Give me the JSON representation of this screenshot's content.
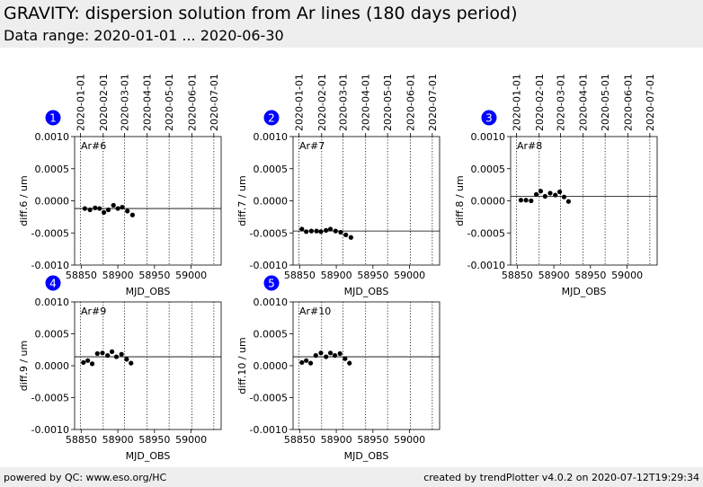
{
  "header": {
    "title": "GRAVITY: dispersion solution from Ar lines (180 days period)",
    "subtitle": "Data range: 2020-01-01 ... 2020-06-30"
  },
  "footer": {
    "left": "powered by QC: www.eso.org/HC",
    "right": "created by trendPlotter v4.0.2 on 2020-07-12T19:29:34"
  },
  "colors": {
    "badge": "#0000ff",
    "points": "#000000",
    "background": "#eeeeee"
  },
  "chart_data": [
    {
      "type": "scatter",
      "panel": "1",
      "label": "Ar#6",
      "xlabel": "MJD_OBS",
      "ylabel": "diff.6 / um",
      "xlim": [
        58841,
        59041
      ],
      "ylim": [
        -0.001,
        0.001
      ],
      "xticks": [
        58850,
        58900,
        58950,
        59000
      ],
      "xtick_labels": [
        "58850",
        "58900",
        "58950",
        "59000"
      ],
      "yticks": [
        -0.001,
        -0.0005,
        0,
        0.0005,
        0.001
      ],
      "ytick_labels": [
        "-0.0010",
        "-0.0005",
        "0.0000",
        "0.0005",
        "0.0010"
      ],
      "top_ticks": [
        58849,
        58880,
        58909,
        58940,
        58970,
        59001,
        59031
      ],
      "top_tick_labels": [
        "2020-01-01",
        "2020-02-01",
        "2020-03-01",
        "2020-04-01",
        "2020-05-01",
        "2020-06-01",
        "2020-07-01"
      ],
      "reference_line": -0.00012,
      "x": [
        58855,
        58862,
        58869,
        58875,
        58881,
        58887,
        58894,
        58900,
        58906,
        58913,
        58920
      ],
      "y": [
        -0.00012,
        -0.00014,
        -0.00011,
        -0.00012,
        -0.00018,
        -0.00014,
        -7e-05,
        -0.00012,
        -0.0001,
        -0.00016,
        -0.00022
      ]
    },
    {
      "type": "scatter",
      "panel": "2",
      "label": "Ar#7",
      "xlabel": "MJD_OBS",
      "ylabel": "diff.7 / um",
      "xlim": [
        58841,
        59041
      ],
      "ylim": [
        -0.001,
        0.001
      ],
      "xticks": [
        58850,
        58900,
        58950,
        59000
      ],
      "xtick_labels": [
        "58850",
        "58900",
        "58950",
        "59000"
      ],
      "yticks": [
        -0.001,
        -0.0005,
        0,
        0.0005,
        0.001
      ],
      "ytick_labels": [
        "-0.0010",
        "-0.0005",
        "0.0000",
        "0.0005",
        "0.0010"
      ],
      "top_ticks": [
        58849,
        58880,
        58909,
        58940,
        58970,
        59001,
        59031
      ],
      "top_tick_labels": [
        "2020-01-01",
        "2020-02-01",
        "2020-03-01",
        "2020-04-01",
        "2020-05-01",
        "2020-06-01",
        "2020-07-01"
      ],
      "reference_line": -0.00047,
      "x": [
        58853,
        58859,
        58866,
        58873,
        58879,
        58886,
        58892,
        58899,
        58906,
        58913,
        58920
      ],
      "y": [
        -0.00044,
        -0.00048,
        -0.00047,
        -0.00047,
        -0.00048,
        -0.00046,
        -0.00044,
        -0.00047,
        -0.00049,
        -0.00053,
        -0.00057
      ]
    },
    {
      "type": "scatter",
      "panel": "3",
      "label": "Ar#8",
      "xlabel": "MJD_OBS",
      "ylabel": "diff.8 / um",
      "xlim": [
        58841,
        59041
      ],
      "ylim": [
        -0.001,
        0.001
      ],
      "xticks": [
        58850,
        58900,
        58950,
        59000
      ],
      "xtick_labels": [
        "58850",
        "58900",
        "58950",
        "59000"
      ],
      "yticks": [
        -0.001,
        -0.0005,
        0,
        0.0005,
        0.001
      ],
      "ytick_labels": [
        "-0.0010",
        "-0.0005",
        "0.0000",
        "0.0005",
        "0.0010"
      ],
      "top_ticks": [
        58849,
        58880,
        58909,
        58940,
        58970,
        59001,
        59031
      ],
      "top_tick_labels": [
        "2020-01-01",
        "2020-02-01",
        "2020-03-01",
        "2020-04-01",
        "2020-05-01",
        "2020-06-01",
        "2020-07-01"
      ],
      "reference_line": 7e-05,
      "x": [
        58855,
        58862,
        58869,
        58876,
        58882,
        58888,
        58895,
        58902,
        58908,
        58914,
        58920
      ],
      "y": [
        1e-05,
        1e-05,
        0.0,
        0.0001,
        0.00015,
        7e-05,
        0.00012,
        9e-05,
        0.00014,
        6e-05,
        -1e-05
      ]
    },
    {
      "type": "scatter",
      "panel": "4",
      "label": "Ar#9",
      "xlabel": "MJD_OBS",
      "ylabel": "diff.9 / um",
      "xlim": [
        58841,
        59041
      ],
      "ylim": [
        -0.001,
        0.001
      ],
      "xticks": [
        58850,
        58900,
        58950,
        59000
      ],
      "xtick_labels": [
        "58850",
        "58900",
        "58950",
        "59000"
      ],
      "yticks": [
        -0.001,
        -0.0005,
        0,
        0.0005,
        0.001
      ],
      "ytick_labels": [
        "-0.0010",
        "-0.0005",
        "0.0000",
        "0.0005",
        "0.0010"
      ],
      "reference_line": 0.00014,
      "x": [
        58853,
        58859,
        58865,
        58872,
        58879,
        58886,
        58892,
        58898,
        58905,
        58912,
        58918
      ],
      "y": [
        5e-05,
        8e-05,
        3e-05,
        0.00019,
        0.0002,
        0.00016,
        0.00022,
        0.00014,
        0.00018,
        0.0001,
        4e-05
      ]
    },
    {
      "type": "scatter",
      "panel": "5",
      "label": "Ar#10",
      "xlabel": "MJD_OBS",
      "ylabel": "diff.10 / um",
      "xlim": [
        58841,
        59041
      ],
      "ylim": [
        -0.001,
        0.001
      ],
      "xticks": [
        58850,
        58900,
        58950,
        59000
      ],
      "xtick_labels": [
        "58850",
        "58900",
        "58950",
        "59000"
      ],
      "yticks": [
        -0.001,
        -0.0005,
        0,
        0.0005,
        0.001
      ],
      "ytick_labels": [
        "-0.0010",
        "-0.0005",
        "0.0000",
        "0.0005",
        "0.0010"
      ],
      "reference_line": 0.00014,
      "x": [
        58853,
        58859,
        58865,
        58872,
        58879,
        58886,
        58892,
        58898,
        58905,
        58912,
        58918
      ],
      "y": [
        5e-05,
        8e-05,
        4e-05,
        0.00016,
        0.0002,
        0.00014,
        0.0002,
        0.00016,
        0.00019,
        0.00011,
        4e-05
      ]
    }
  ]
}
